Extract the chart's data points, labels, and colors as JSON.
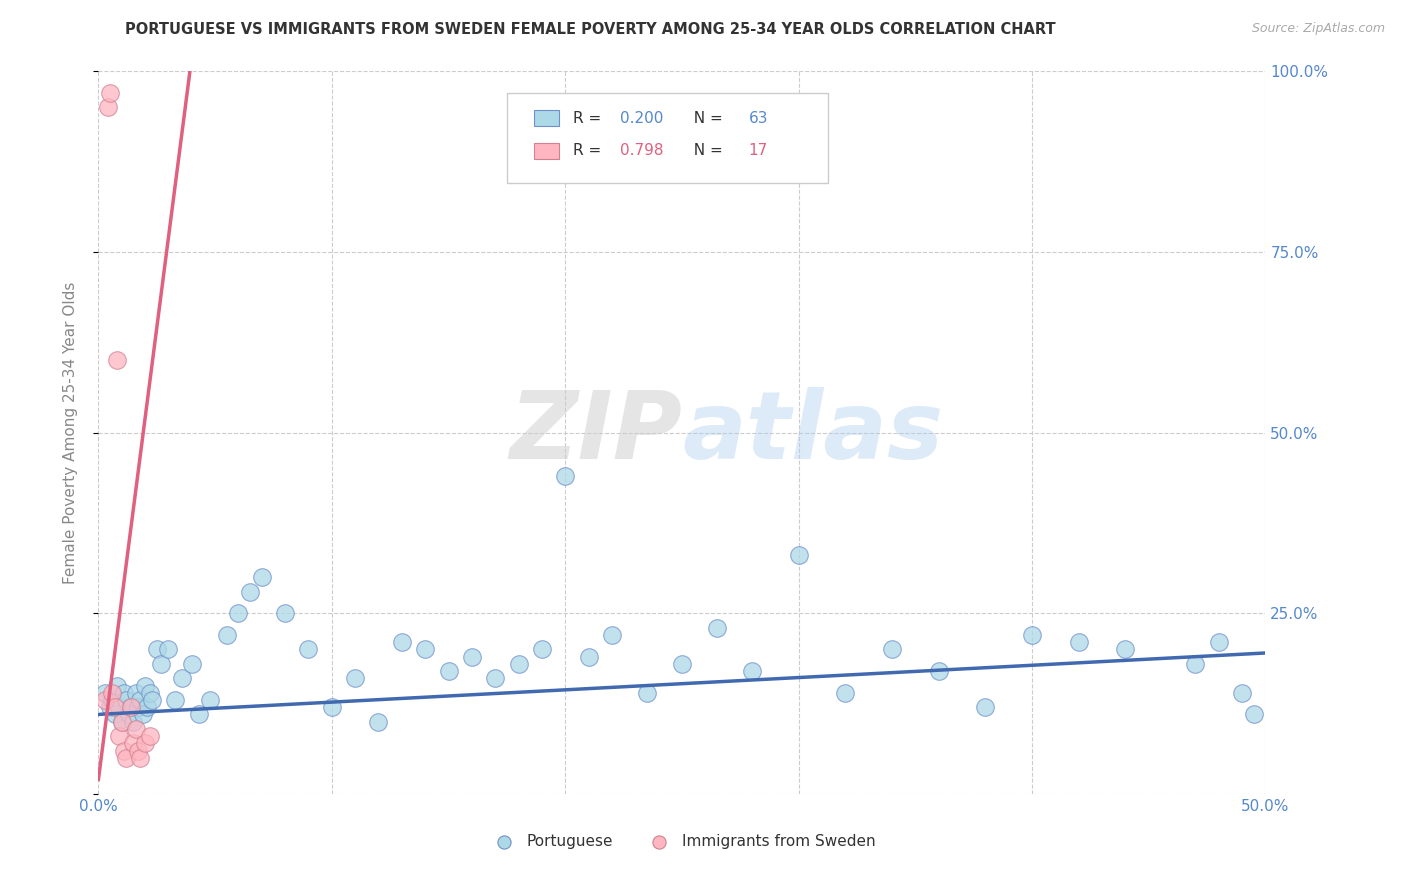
{
  "title": "PORTUGUESE VS IMMIGRANTS FROM SWEDEN FEMALE POVERTY AMONG 25-34 YEAR OLDS CORRELATION CHART",
  "source": "Source: ZipAtlas.com",
  "ylabel": "Female Poverty Among 25-34 Year Olds",
  "xlim": [
    0.0,
    0.5
  ],
  "ylim": [
    0.0,
    1.0
  ],
  "xticks": [
    0.0,
    0.1,
    0.2,
    0.3,
    0.4,
    0.5
  ],
  "yticks": [
    0.0,
    0.25,
    0.5,
    0.75,
    1.0
  ],
  "xtick_labels": [
    "0.0%",
    "",
    "",
    "",
    "",
    "50.0%"
  ],
  "ytick_labels_right": [
    "",
    "25.0%",
    "50.0%",
    "75.0%",
    "100.0%"
  ],
  "watermark_zip": "ZIP",
  "watermark_atlas": "atlas",
  "legend_r1_val": "0.200",
  "legend_n1_val": "63",
  "legend_r2_val": "0.798",
  "legend_n2_val": "17",
  "color_blue": "#add8e6",
  "color_pink": "#ffb6c1",
  "color_blue_line": "#4169b0",
  "color_pink_line": "#e06080",
  "color_blue_edge": "#7090cc",
  "color_pink_edge": "#d08090",
  "blue_scatter_x": [
    0.003,
    0.005,
    0.006,
    0.007,
    0.008,
    0.009,
    0.01,
    0.011,
    0.012,
    0.013,
    0.014,
    0.015,
    0.016,
    0.017,
    0.018,
    0.019,
    0.02,
    0.021,
    0.022,
    0.023,
    0.025,
    0.027,
    0.03,
    0.033,
    0.036,
    0.04,
    0.043,
    0.048,
    0.055,
    0.06,
    0.065,
    0.07,
    0.08,
    0.09,
    0.1,
    0.11,
    0.12,
    0.13,
    0.14,
    0.15,
    0.16,
    0.17,
    0.18,
    0.19,
    0.2,
    0.21,
    0.22,
    0.235,
    0.25,
    0.265,
    0.28,
    0.3,
    0.32,
    0.34,
    0.36,
    0.38,
    0.4,
    0.42,
    0.44,
    0.47,
    0.48,
    0.49,
    0.495
  ],
  "blue_scatter_y": [
    0.14,
    0.12,
    0.13,
    0.11,
    0.15,
    0.12,
    0.1,
    0.14,
    0.13,
    0.11,
    0.12,
    0.1,
    0.14,
    0.12,
    0.13,
    0.11,
    0.15,
    0.12,
    0.14,
    0.13,
    0.2,
    0.18,
    0.2,
    0.13,
    0.16,
    0.18,
    0.11,
    0.13,
    0.22,
    0.25,
    0.28,
    0.3,
    0.25,
    0.2,
    0.12,
    0.16,
    0.1,
    0.21,
    0.2,
    0.17,
    0.19,
    0.16,
    0.18,
    0.2,
    0.44,
    0.19,
    0.22,
    0.14,
    0.18,
    0.23,
    0.17,
    0.33,
    0.14,
    0.2,
    0.17,
    0.12,
    0.22,
    0.21,
    0.2,
    0.18,
    0.21,
    0.14,
    0.11
  ],
  "pink_scatter_x": [
    0.003,
    0.004,
    0.005,
    0.006,
    0.007,
    0.008,
    0.009,
    0.01,
    0.011,
    0.012,
    0.014,
    0.015,
    0.016,
    0.017,
    0.018,
    0.02,
    0.022
  ],
  "pink_scatter_y": [
    0.13,
    0.95,
    0.97,
    0.14,
    0.12,
    0.6,
    0.08,
    0.1,
    0.06,
    0.05,
    0.12,
    0.07,
    0.09,
    0.06,
    0.05,
    0.07,
    0.08
  ],
  "blue_line_x": [
    0.0,
    0.5
  ],
  "blue_line_y": [
    0.11,
    0.195
  ],
  "pink_line_x": [
    0.0,
    0.04
  ],
  "pink_line_y": [
    0.02,
    1.02
  ]
}
